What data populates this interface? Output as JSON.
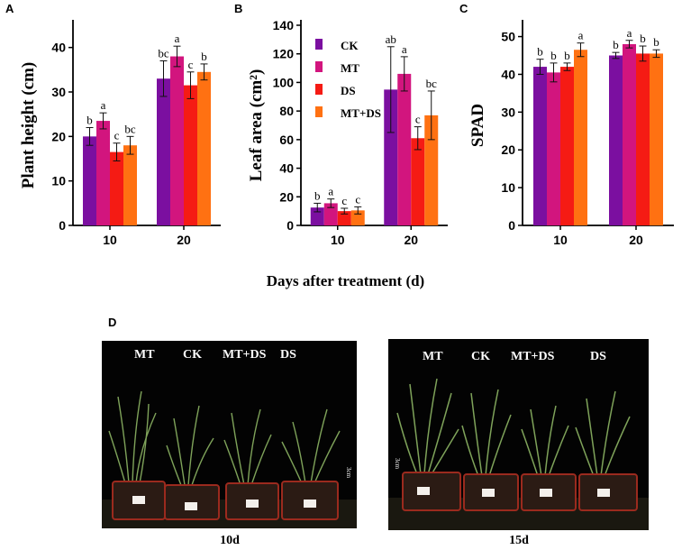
{
  "panels": {
    "a": "A",
    "b": "B",
    "c": "C",
    "d": "D"
  },
  "x_axis_title": "Days after treatment (d)",
  "legend": [
    "CK",
    "MT",
    "DS",
    "MT+DS"
  ],
  "colors": {
    "CK": "#7b0fa0",
    "MT": "#d2157e",
    "DS": "#f51b14",
    "MT+DS": "#ff7112"
  },
  "chart_data": [
    {
      "type": "bar",
      "panel": "A",
      "title": "",
      "xlabel": "",
      "ylabel": "Plant height (cm)",
      "categories": [
        "10",
        "20"
      ],
      "ylim": [
        0,
        45
      ],
      "yticks": [
        0,
        10,
        20,
        30,
        40
      ],
      "series": [
        {
          "name": "CK",
          "values": [
            20.0,
            33.0
          ],
          "errors": [
            2.0,
            4.0
          ],
          "letters": [
            "b",
            "bc"
          ]
        },
        {
          "name": "MT",
          "values": [
            23.5,
            38.0
          ],
          "errors": [
            1.8,
            2.3
          ],
          "letters": [
            "a",
            "a"
          ]
        },
        {
          "name": "DS",
          "values": [
            16.5,
            31.5
          ],
          "errors": [
            2.0,
            3.0
          ],
          "letters": [
            "c",
            "c"
          ]
        },
        {
          "name": "MT+DS",
          "values": [
            18.0,
            34.5
          ],
          "errors": [
            2.0,
            1.8
          ],
          "letters": [
            "bc",
            "b"
          ]
        }
      ]
    },
    {
      "type": "bar",
      "panel": "B",
      "title": "",
      "xlabel": "",
      "ylabel": "Leaf area (cm²)",
      "categories": [
        "10",
        "20"
      ],
      "ylim": [
        0,
        140
      ],
      "yticks": [
        0,
        20,
        40,
        60,
        80,
        100,
        120,
        140
      ],
      "series": [
        {
          "name": "CK",
          "values": [
            12.5,
            95.0
          ],
          "errors": [
            3.0,
            30.0
          ],
          "letters": [
            "b",
            "ab"
          ]
        },
        {
          "name": "MT",
          "values": [
            15.5,
            106.0
          ],
          "errors": [
            3.0,
            12.0
          ],
          "letters": [
            "a",
            "a"
          ]
        },
        {
          "name": "DS",
          "values": [
            10.0,
            61.0
          ],
          "errors": [
            2.0,
            8.0
          ],
          "letters": [
            "c",
            "c"
          ]
        },
        {
          "name": "MT+DS",
          "values": [
            10.5,
            77.0
          ],
          "errors": [
            2.5,
            17.0
          ],
          "letters": [
            "c",
            "bc"
          ]
        }
      ]
    },
    {
      "type": "bar",
      "panel": "C",
      "title": "",
      "xlabel": "",
      "ylabel": "SPAD",
      "categories": [
        "10",
        "20"
      ],
      "ylim": [
        0,
        53
      ],
      "yticks": [
        0,
        10,
        20,
        30,
        40,
        50
      ],
      "series": [
        {
          "name": "CK",
          "values": [
            42.0,
            45.0
          ],
          "errors": [
            2.0,
            0.8
          ],
          "letters": [
            "b",
            "b"
          ]
        },
        {
          "name": "MT",
          "values": [
            40.5,
            48.0
          ],
          "errors": [
            2.5,
            1.0
          ],
          "letters": [
            "b",
            "a"
          ]
        },
        {
          "name": "DS",
          "values": [
            42.0,
            45.5
          ],
          "errors": [
            1.0,
            2.0
          ],
          "letters": [
            "b",
            "b"
          ]
        },
        {
          "name": "MT+DS",
          "values": [
            46.5,
            45.5
          ],
          "errors": [
            1.8,
            1.0
          ],
          "letters": [
            "a",
            "b"
          ]
        }
      ]
    }
  ],
  "photos": [
    {
      "caption": "10d",
      "labels": [
        "MT",
        "CK",
        "MT+DS",
        "DS"
      ],
      "scale": "3cm"
    },
    {
      "caption": "15d",
      "labels": [
        "MT",
        "CK",
        "MT+DS",
        "DS"
      ],
      "scale": "3cm"
    }
  ]
}
